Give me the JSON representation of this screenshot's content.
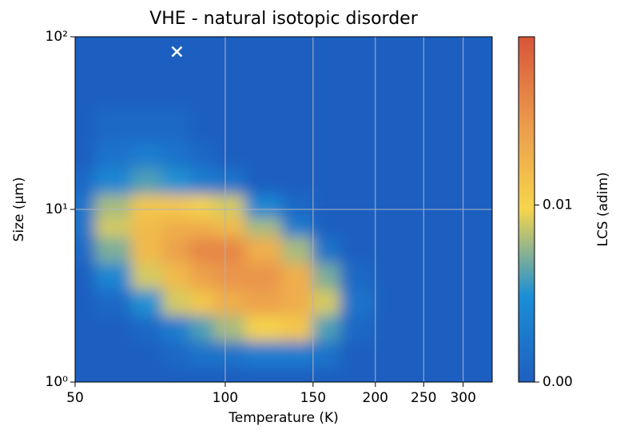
{
  "chart_data": {
    "type": "heatmap",
    "title": "VHE - natural isotopic disorder",
    "xlabel": "Temperature (K)",
    "ylabel": "Size (µm)",
    "xscale": "log",
    "yscale": "log",
    "grid": true,
    "x": [
      50,
      60,
      70,
      80,
      90,
      100,
      120,
      140,
      160,
      180,
      220,
      280,
      340
    ],
    "y": [
      1,
      1.5,
      2,
      3,
      4,
      6,
      8,
      10,
      15,
      20,
      30,
      50,
      100
    ],
    "z": [
      [
        0,
        0,
        0,
        0,
        0,
        0,
        0,
        0,
        0,
        0,
        0,
        0,
        0
      ],
      [
        0,
        0,
        0,
        0.001,
        0.002,
        0.002,
        0.003,
        0.003,
        0.002,
        0,
        0,
        0,
        0
      ],
      [
        0,
        0,
        0.001,
        0.003,
        0.006,
        0.008,
        0.01,
        0.011,
        0.006,
        0.001,
        0,
        0,
        0
      ],
      [
        0,
        0.001,
        0.005,
        0.009,
        0.011,
        0.013,
        0.014,
        0.013,
        0.009,
        0.002,
        0,
        0,
        0
      ],
      [
        0,
        0.004,
        0.009,
        0.012,
        0.014,
        0.015,
        0.015,
        0.013,
        0.007,
        0.001,
        0,
        0,
        0
      ],
      [
        0.001,
        0.007,
        0.012,
        0.014,
        0.016,
        0.016,
        0.013,
        0.008,
        0.002,
        0,
        0,
        0,
        0
      ],
      [
        0.002,
        0.009,
        0.012,
        0.013,
        0.013,
        0.012,
        0.008,
        0.003,
        0,
        0,
        0,
        0,
        0
      ],
      [
        0.002,
        0.008,
        0.011,
        0.011,
        0.01,
        0.009,
        0.004,
        0.001,
        0,
        0,
        0,
        0,
        0
      ],
      [
        0.001,
        0.004,
        0.006,
        0.005,
        0.003,
        0.002,
        0,
        0,
        0,
        0,
        0,
        0,
        0
      ],
      [
        0,
        0.002,
        0.003,
        0.002,
        0.001,
        0,
        0,
        0,
        0,
        0,
        0,
        0,
        0
      ],
      [
        0,
        0.001,
        0.001,
        0.001,
        0,
        0,
        0,
        0,
        0,
        0,
        0,
        0,
        0
      ],
      [
        0,
        0,
        0,
        0,
        0,
        0,
        0,
        0,
        0,
        0,
        0,
        0,
        0
      ],
      [
        0,
        0,
        0,
        0,
        0,
        0,
        0,
        0,
        0,
        0,
        0,
        0,
        0
      ]
    ],
    "xlim": [
      50,
      343
    ],
    "ylim": [
      1,
      100
    ],
    "xticks": [
      50,
      100,
      150,
      200,
      250,
      300
    ],
    "yticks": [
      {
        "value": 1,
        "label": "10⁰"
      },
      {
        "value": 10,
        "label": "10¹"
      },
      {
        "value": 100,
        "label": "10²"
      }
    ],
    "colorbar": {
      "label": "LCS (adim)",
      "lim": [
        0,
        0.0195
      ],
      "ticks": [
        {
          "value": 0,
          "label": "0.00"
        },
        {
          "value": 0.01,
          "label": "0.01"
        }
      ]
    },
    "colormap": [
      "#1f5fc0",
      "#1a8fd6",
      "#f6d54c",
      "#eb9a4c",
      "#d8553a"
    ],
    "marker": {
      "x": 80,
      "y": 82,
      "color": "#ffffff"
    }
  }
}
